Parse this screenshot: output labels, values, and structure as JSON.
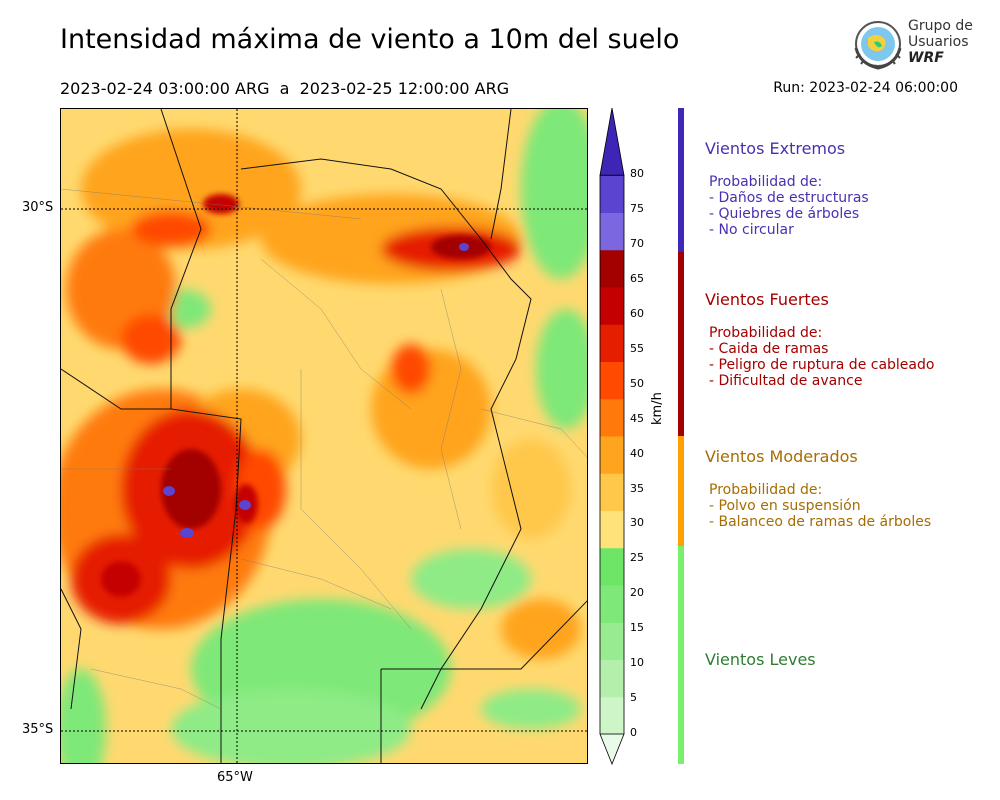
{
  "header": {
    "title": "Intensidad máxima de viento a 10m del suelo",
    "period": "2023-02-24 03:00:00 ARG  a  2023-02-25 12:00:00 ARG",
    "run": "Run: 2023-02-24 06:00:00"
  },
  "logo": {
    "line1": "Grupo de",
    "line2": "Usuarios",
    "line3": "WRF"
  },
  "map": {
    "lat_labels": [
      "30°S",
      "35°S"
    ],
    "lon_labels": [
      "65°W"
    ],
    "dominant": "moderate winds 25-40 km/h with strong-wind cores to 60+ km/h in the west and extreme spots >65 km/h"
  },
  "colorbar": {
    "unit": "km/h",
    "ticks": [
      "0",
      "5",
      "10",
      "15",
      "20",
      "25",
      "30",
      "35",
      "40",
      "45",
      "50",
      "55",
      "60",
      "65",
      "70",
      "75",
      "80"
    ],
    "colors": [
      "#e8fbe8",
      "#cdf5c8",
      "#b4f0ac",
      "#98eb8e",
      "#7ee878",
      "#6de667",
      "#ffe27a",
      "#ffc84b",
      "#ffa41e",
      "#ff7a0a",
      "#ff4a00",
      "#e61e00",
      "#c40000",
      "#a30000",
      "#7b68e0",
      "#5a44d0",
      "#3f25b5"
    ]
  },
  "categories": [
    {
      "title": "Vientos Extremos",
      "color": "#4b2fb0",
      "bar_color": "#3f28b8",
      "items": [
        "Probabilidad de:",
        "- Daños de estructuras",
        "- Quiebres de árboles",
        "- No circular"
      ]
    },
    {
      "title": "Vientos Fuertes",
      "color": "#a30000",
      "bar_color": "#a00000",
      "items": [
        "Probabilidad de:",
        "- Caida de ramas",
        "- Peligro de ruptura de cableado",
        "- Dificultad de avance"
      ]
    },
    {
      "title": "Vientos Moderados",
      "color": "#a66d00",
      "bar_color": "#ffa000",
      "items": [
        "Probabilidad de:",
        "- Polvo en suspensión",
        "- Balanceo de ramas de árboles"
      ]
    },
    {
      "title": "Vientos Leves",
      "color": "#2e7d32",
      "bar_color": "#78f06e",
      "items": []
    }
  ]
}
